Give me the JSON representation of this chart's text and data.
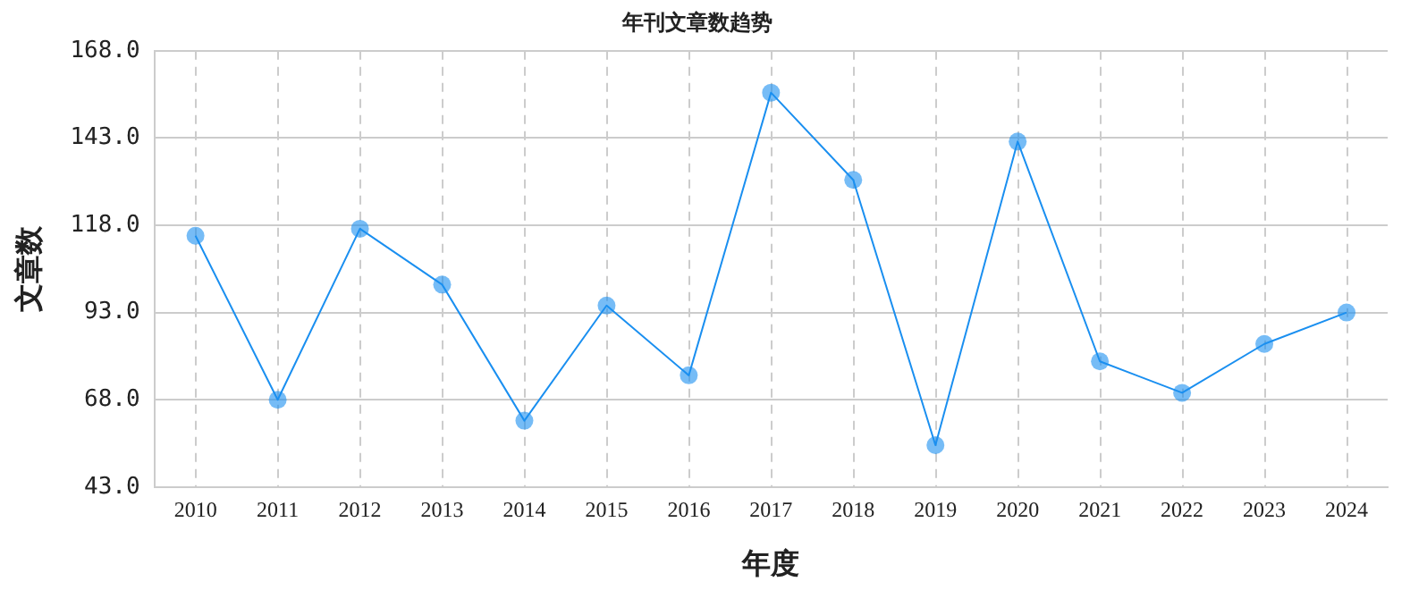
{
  "chart_data": {
    "type": "line",
    "title": "年刊文章数趋势",
    "xlabel": "年度",
    "ylabel": "文章数",
    "categories": [
      "2010",
      "2011",
      "2012",
      "2013",
      "2014",
      "2015",
      "2016",
      "2017",
      "2018",
      "2019",
      "2020",
      "2021",
      "2022",
      "2023",
      "2024"
    ],
    "series": [
      {
        "color": "#1a8ff0",
        "values": [
          115,
          68,
          117,
          101,
          62,
          95,
          75,
          156,
          131,
          55,
          142,
          79,
          70,
          84,
          93
        ]
      }
    ],
    "ylim": [
      43,
      168
    ],
    "yticks": [
      {
        "value": 43,
        "label": "43.0"
      },
      {
        "value": 68,
        "label": "68.0"
      },
      {
        "value": 93,
        "label": "93.0"
      },
      {
        "value": 118,
        "label": "118.0"
      },
      {
        "value": 143,
        "label": "143.0"
      },
      {
        "value": 168,
        "label": "168.0"
      }
    ],
    "grid": true,
    "legend": false,
    "marker": "circle",
    "line_style": "solid"
  }
}
